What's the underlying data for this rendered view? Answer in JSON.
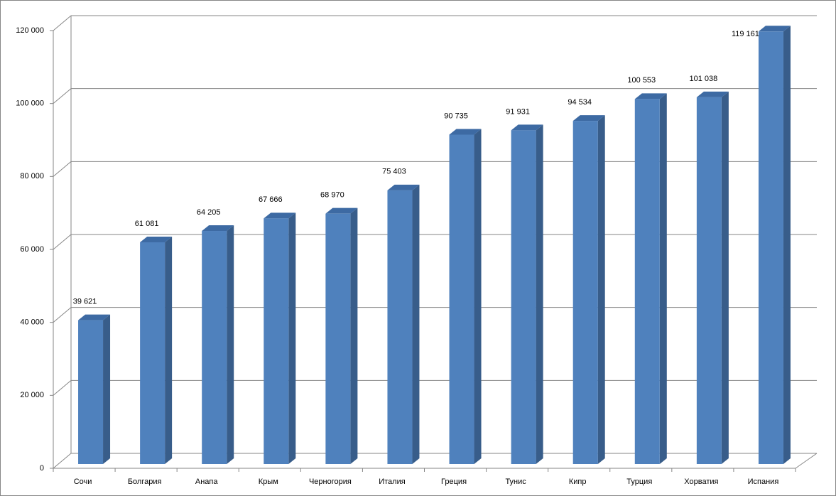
{
  "chart_data": {
    "type": "bar3d",
    "categories": [
      "Сочи",
      "Болгария",
      "Анапа",
      "Крым",
      "Черногория",
      "Италия",
      "Греция",
      "Тунис",
      "Кипр",
      "Турция",
      "Хорватия",
      "Испания"
    ],
    "values": [
      39621,
      61081,
      64205,
      67666,
      68970,
      75403,
      90735,
      91931,
      94534,
      100553,
      101038,
      119161
    ],
    "value_labels": [
      "39 621",
      "61 081",
      "64 205",
      "67 666",
      "68 970",
      "75 403",
      "90 735",
      "91 931",
      "94 534",
      "100 553",
      "101 038",
      "119 161"
    ],
    "color": "#4f81bd",
    "ylim": [
      0,
      120000
    ],
    "yticks": [
      0,
      {
        "value": 20000,
        "label": "20 000"
      },
      {
        "value": 40000,
        "label": "40 000"
      },
      {
        "value": 60000,
        "label": "60 000"
      },
      {
        "value": 80000,
        "label": "80 000"
      },
      {
        "value": 100000,
        "label": "100 000"
      },
      {
        "value": 120000,
        "label": "120 000"
      }
    ],
    "grid": true
  }
}
